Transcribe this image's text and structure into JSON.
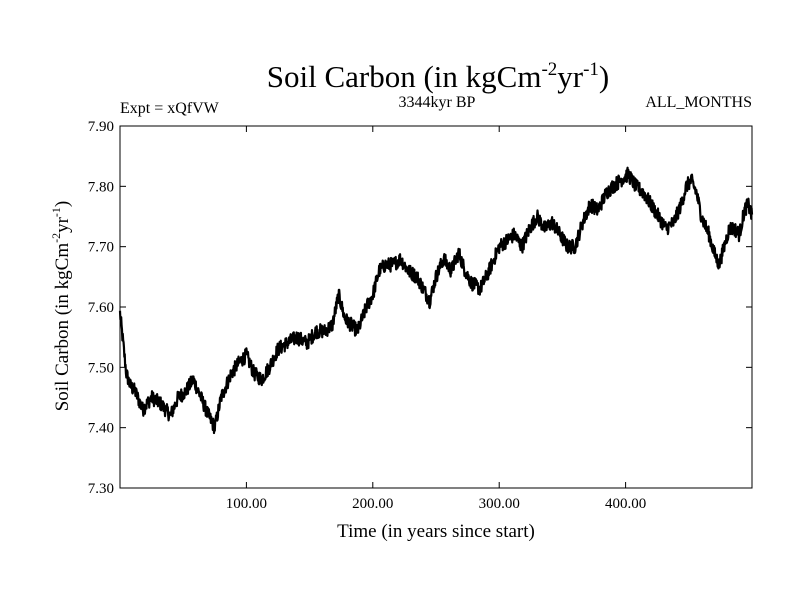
{
  "chart_data": {
    "type": "line",
    "title": {
      "main": "Soil Carbon (in kgCm",
      "sup1": "-2",
      "mid": "yr",
      "sup2": "-1",
      "end": ")"
    },
    "subtitle_left": "Expt = xQfVW",
    "subtitle_center": "3344kyr BP",
    "subtitle_right": "ALL_MONTHS",
    "xlabel": "Time (in years since start)",
    "ylabel": {
      "main": "Soil Carbon (in kgCm",
      "sup1": "-2",
      "mid": "yr",
      "sup2": "-1",
      "end": ")"
    },
    "xlim": [
      0,
      500
    ],
    "ylim": [
      7.3,
      7.9
    ],
    "x_ticks": [
      100,
      200,
      300,
      400
    ],
    "x_tick_labels": [
      "100.00",
      "200.00",
      "300.00",
      "400.00"
    ],
    "y_ticks": [
      7.3,
      7.4,
      7.5,
      7.6,
      7.7,
      7.8,
      7.9
    ],
    "y_tick_labels": [
      "7.30",
      "7.40",
      "7.50",
      "7.60",
      "7.70",
      "7.80",
      "7.90"
    ],
    "series_color": "#000000",
    "noise_amplitude": 0.012,
    "series": [
      {
        "name": "Soil Carbon",
        "x": [
          0,
          2,
          5,
          8,
          12,
          18,
          25,
          32,
          40,
          46,
          52,
          58,
          64,
          70,
          75,
          80,
          88,
          95,
          100,
          106,
          112,
          118,
          125,
          132,
          140,
          148,
          155,
          162,
          168,
          173,
          178,
          183,
          188,
          195,
          200,
          205,
          210,
          216,
          222,
          228,
          235,
          240,
          245,
          250,
          256,
          262,
          268,
          273,
          278,
          285,
          292,
          300,
          306,
          312,
          318,
          324,
          330,
          336,
          342,
          348,
          354,
          360,
          366,
          372,
          378,
          385,
          390,
          396,
          402,
          408,
          414,
          420,
          426,
          432,
          438,
          444,
          448,
          452,
          456,
          460,
          466,
          470,
          474,
          478,
          482,
          486,
          490,
          494,
          497,
          500
        ],
        "y": [
          7.59,
          7.55,
          7.49,
          7.47,
          7.46,
          7.43,
          7.45,
          7.44,
          7.42,
          7.45,
          7.46,
          7.48,
          7.45,
          7.42,
          7.4,
          7.45,
          7.49,
          7.51,
          7.52,
          7.49,
          7.48,
          7.5,
          7.53,
          7.54,
          7.55,
          7.54,
          7.56,
          7.56,
          7.57,
          7.62,
          7.58,
          7.57,
          7.56,
          7.6,
          7.62,
          7.66,
          7.67,
          7.67,
          7.68,
          7.66,
          7.65,
          7.63,
          7.61,
          7.65,
          7.68,
          7.66,
          7.69,
          7.66,
          7.64,
          7.63,
          7.66,
          7.7,
          7.71,
          7.72,
          7.7,
          7.73,
          7.75,
          7.73,
          7.74,
          7.72,
          7.7,
          7.7,
          7.74,
          7.77,
          7.76,
          7.79,
          7.8,
          7.81,
          7.82,
          7.8,
          7.79,
          7.77,
          7.75,
          7.73,
          7.74,
          7.77,
          7.8,
          7.81,
          7.79,
          7.75,
          7.72,
          7.69,
          7.67,
          7.7,
          7.73,
          7.73,
          7.72,
          7.76,
          7.77,
          7.75
        ]
      }
    ]
  }
}
